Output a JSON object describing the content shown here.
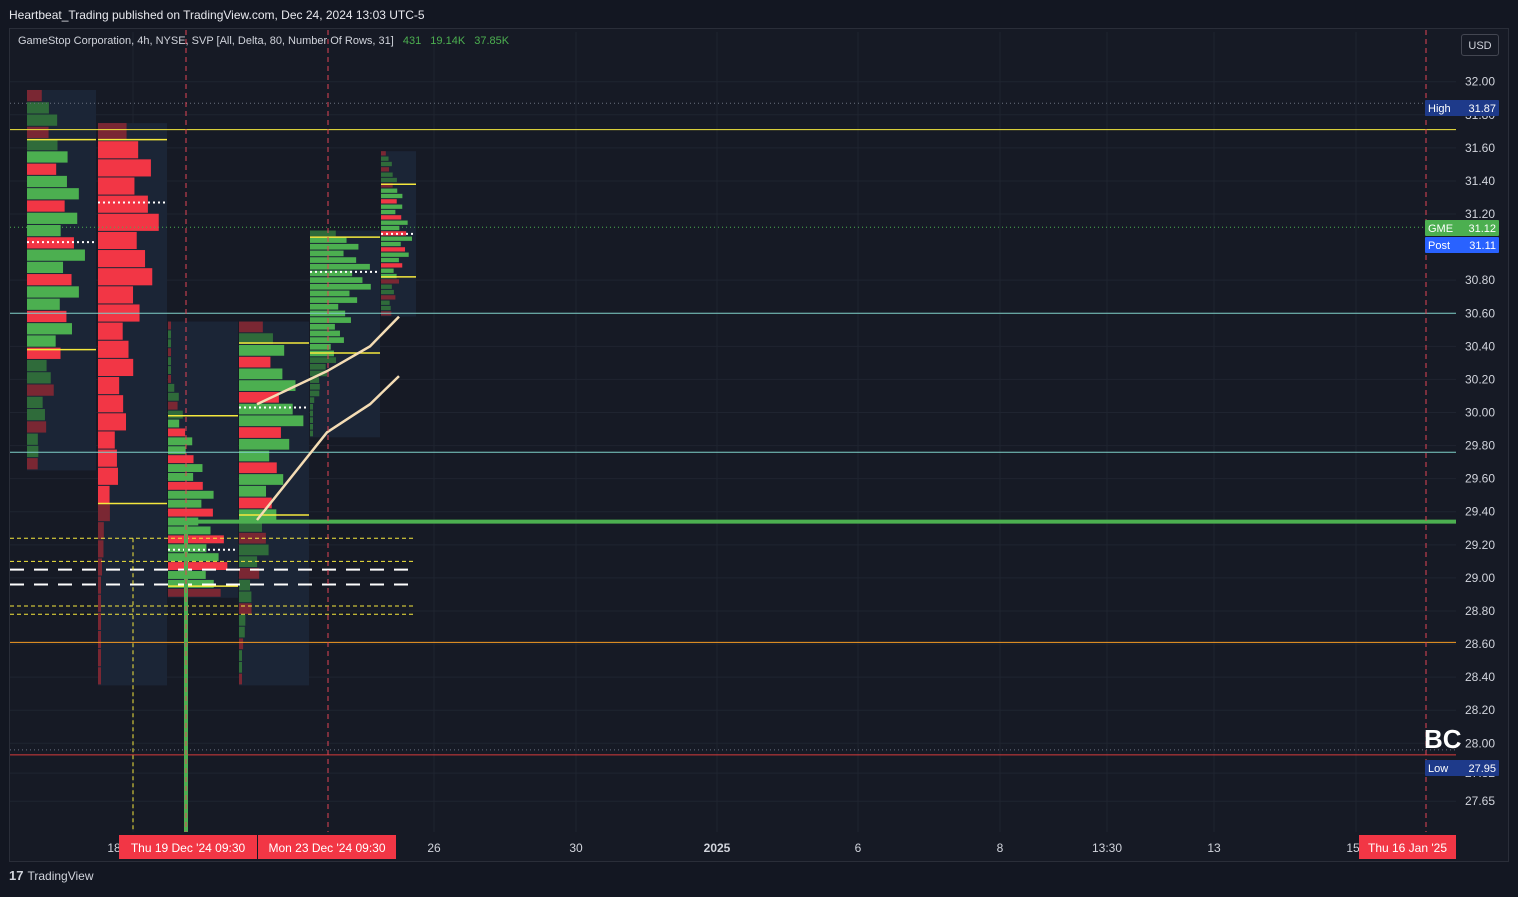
{
  "header": {
    "publish_line": "Heartbeat_Trading published on TradingView.com, Dec 24, 2024 13:03 UTC-5"
  },
  "legend": {
    "title": "GameStop Corporation, 4h, NYSE, SVP [All, Delta, 80, Number Of Rows, 31]",
    "v1": "431",
    "v2": "19.14K",
    "v3": "37.85K"
  },
  "currency_button": "USD",
  "footer": {
    "logo": "17",
    "brand": "TradingView"
  },
  "annotation_text": "BC",
  "colors": {
    "background": "#161a25",
    "up": "#4caf50",
    "down": "#f23645",
    "level_yellow": "#f5e83d",
    "level_teal": "#7fd0c8",
    "level_orange": "#f59a23",
    "level_red": "#d83a3a",
    "trendline": "#f4dcb4",
    "vline": "#e04455"
  },
  "chart_data": {
    "type": "volume_profile_price_chart",
    "symbol": "GME",
    "description": "GameStop Corporation, 4h, NYSE",
    "y_axis": {
      "ticks": [
        32.0,
        31.8,
        31.6,
        31.4,
        31.2,
        30.8,
        30.6,
        30.4,
        30.2,
        30.0,
        29.8,
        29.6,
        29.4,
        29.2,
        29.0,
        28.8,
        28.6,
        28.4,
        28.2,
        28.0,
        27.82,
        27.65
      ],
      "range": [
        27.58,
        32.28
      ]
    },
    "x_axis": {
      "ticks": [
        "18",
        "26",
        "30",
        "2025",
        "6",
        "8",
        "13:30",
        "13",
        "15"
      ],
      "highlight_labels": [
        "Thu 19 Dec '24   09:30",
        "Mon 23 Dec '24   09:30",
        "Thu 16 Jan '25"
      ]
    },
    "price_labels": [
      {
        "label": "High",
        "value": "31.87",
        "color": "#1e3a8a"
      },
      {
        "label": "GME",
        "value": "31.12",
        "color": "#4caf50"
      },
      {
        "label": "Post",
        "value": "31.11",
        "color": "#2962ff"
      },
      {
        "label": "Low",
        "value": "27.95",
        "color": "#1e3a8a"
      }
    ],
    "horizontal_levels": [
      {
        "price": 31.87,
        "style": "dotted",
        "color": "#6b7280"
      },
      {
        "price": 31.71,
        "style": "solid",
        "color": "#f5e83d"
      },
      {
        "price": 31.12,
        "style": "dotted",
        "color": "#4caf50"
      },
      {
        "price": 30.6,
        "style": "solid",
        "color": "#7fd0c8"
      },
      {
        "price": 29.76,
        "style": "solid",
        "color": "#7fd0c8"
      },
      {
        "price": 28.61,
        "style": "solid",
        "color": "#f59a23"
      },
      {
        "price": 27.93,
        "style": "solid",
        "color": "#d83a3a"
      },
      {
        "price": 27.96,
        "style": "dotted",
        "color": "#6b7280"
      }
    ],
    "support_line_price": 29.34,
    "profiles": [
      {
        "high": 31.95,
        "low": 29.65,
        "poc": 31.03,
        "vah": 31.65,
        "val": 30.38,
        "dir": "mixed"
      },
      {
        "high": 31.75,
        "low": 28.35,
        "poc": 31.27,
        "vah": 31.65,
        "val": 29.45,
        "dir": "down"
      },
      {
        "high": 30.55,
        "low": 28.88,
        "poc": 29.17,
        "vah": 29.98,
        "val": 28.95,
        "dir": "mixed"
      },
      {
        "high": 30.55,
        "low": 28.35,
        "poc": 30.03,
        "vah": 30.42,
        "val": 29.38,
        "dir": "mixed"
      },
      {
        "high": 31.1,
        "low": 29.85,
        "poc": 30.85,
        "vah": 31.06,
        "val": 30.36,
        "dir": "up"
      },
      {
        "high": 31.58,
        "low": 30.58,
        "poc": 31.08,
        "vah": 31.38,
        "val": 30.82,
        "dir": "mixed"
      }
    ],
    "trendlines": [
      {
        "points": [
          [
            29.35,
            0
          ],
          [
            29.88,
            1
          ],
          [
            30.05,
            2
          ],
          [
            30.22,
            3
          ]
        ]
      },
      {
        "points": [
          [
            30.05,
            0
          ],
          [
            30.25,
            1
          ],
          [
            30.4,
            2
          ],
          [
            30.58,
            3
          ]
        ]
      }
    ],
    "grid": true
  }
}
